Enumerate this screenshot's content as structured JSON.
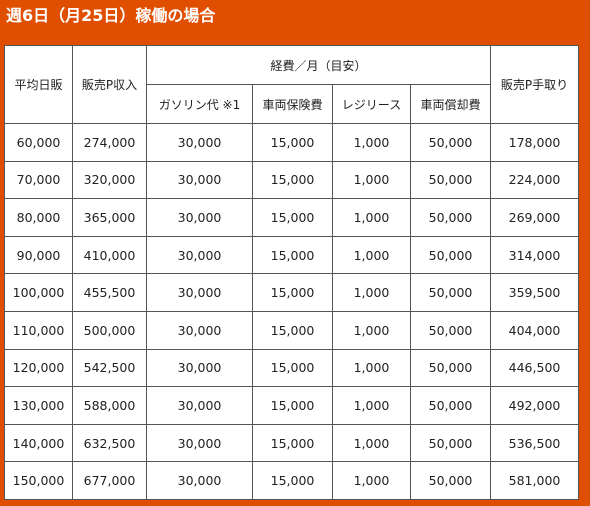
{
  "title": "週6日（月25日）稼働の場合",
  "headers": {
    "avg_daily": "平均日販",
    "sales_revenue": "販売P収入",
    "expenses_group": "経費／月（目安）",
    "gasoline": "ガソリン代 ※1",
    "insurance": "車両保険費",
    "lease": "レジリース",
    "depreciation": "車両償却費",
    "take_home": "販売P手取り"
  },
  "rows": [
    [
      "60,000",
      "274,000",
      "30,000",
      "15,000",
      "1,000",
      "50,000",
      "178,000"
    ],
    [
      "70,000",
      "320,000",
      "30,000",
      "15,000",
      "1,000",
      "50,000",
      "224,000"
    ],
    [
      "80,000",
      "365,000",
      "30,000",
      "15,000",
      "1,000",
      "50,000",
      "269,000"
    ],
    [
      "90,000",
      "410,000",
      "30,000",
      "15,000",
      "1,000",
      "50,000",
      "314,000"
    ],
    [
      "100,000",
      "455,500",
      "30,000",
      "15,000",
      "1,000",
      "50,000",
      "359,500"
    ],
    [
      "110,000",
      "500,000",
      "30,000",
      "15,000",
      "1,000",
      "50,000",
      "404,000"
    ],
    [
      "120,000",
      "542,500",
      "30,000",
      "15,000",
      "1,000",
      "50,000",
      "446,500"
    ],
    [
      "130,000",
      "588,000",
      "30,000",
      "15,000",
      "1,000",
      "50,000",
      "492,000"
    ],
    [
      "140,000",
      "632,500",
      "30,000",
      "15,000",
      "1,000",
      "50,000",
      "536,500"
    ],
    [
      "150,000",
      "677,000",
      "30,000",
      "15,000",
      "1,000",
      "50,000",
      "581,000"
    ]
  ],
  "colors": {
    "background": "#e04e00",
    "title_text": "#ffffff",
    "table_bg": "#ffffff",
    "border": "#555555"
  }
}
